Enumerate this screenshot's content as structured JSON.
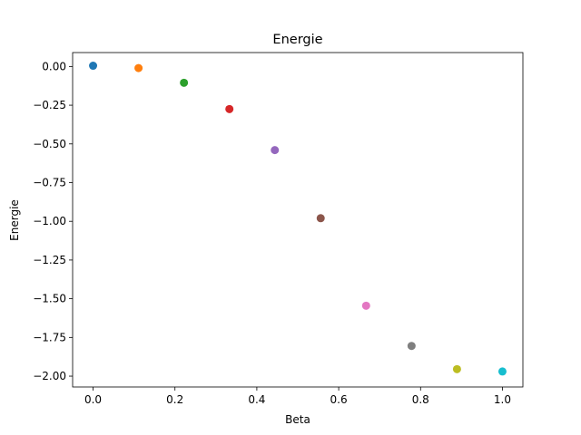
{
  "chart_data": {
    "type": "scatter",
    "title": "Energie",
    "xlabel": "Beta",
    "ylabel": "Energie",
    "xlim": [
      -0.05,
      1.05
    ],
    "ylim": [
      -2.07,
      0.09
    ],
    "xticks": [
      0.0,
      0.2,
      0.4,
      0.6,
      0.8,
      1.0
    ],
    "xtick_labels": [
      "0.0",
      "0.2",
      "0.4",
      "0.6",
      "0.8",
      "1.0"
    ],
    "yticks": [
      0.0,
      -0.25,
      -0.5,
      -0.75,
      -1.0,
      -1.25,
      -1.5,
      -1.75,
      -2.0
    ],
    "ytick_labels": [
      "0.00",
      "−0.25",
      "−0.50",
      "−0.75",
      "−1.00",
      "−1.25",
      "−1.50",
      "−1.75",
      "−2.00"
    ],
    "grid": false,
    "points": [
      {
        "x": 0.0,
        "y": 0.005,
        "color": "#1f77b4"
      },
      {
        "x": 0.111,
        "y": -0.01,
        "color": "#ff7f0e"
      },
      {
        "x": 0.222,
        "y": -0.105,
        "color": "#2ca02c"
      },
      {
        "x": 0.333,
        "y": -0.275,
        "color": "#d62728"
      },
      {
        "x": 0.444,
        "y": -0.54,
        "color": "#9467bd"
      },
      {
        "x": 0.556,
        "y": -0.98,
        "color": "#8c564b"
      },
      {
        "x": 0.667,
        "y": -1.545,
        "color": "#e377c2"
      },
      {
        "x": 0.778,
        "y": -1.805,
        "color": "#7f7f7f"
      },
      {
        "x": 0.889,
        "y": -1.955,
        "color": "#bcbd22"
      },
      {
        "x": 1.0,
        "y": -1.97,
        "color": "#17becf"
      }
    ]
  }
}
